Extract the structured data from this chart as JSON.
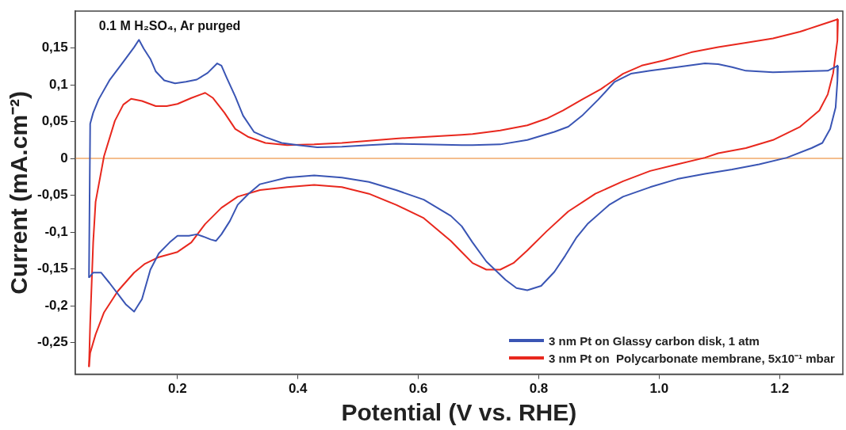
{
  "chart_data": {
    "type": "line",
    "xlabel": "Potential (V vs. RHE)",
    "ylabel": "Current (mA.cm⁻²)",
    "annotations": [
      "0.1 M H₂SO₄, Ar purged"
    ],
    "xlim": [
      0.03,
      1.305
    ],
    "xticks": [
      0.2,
      0.4,
      0.6,
      0.8,
      {
        "value": 1.0,
        "label": "1.0"
      },
      1.2
    ],
    "ylim": [
      -0.293,
      0.2
    ],
    "yticks": [
      {
        "value": -0.25,
        "label": "-0,25"
      },
      {
        "value": -0.2,
        "label": "-0,2"
      },
      {
        "value": -0.15,
        "label": "-0,15"
      },
      {
        "value": -0.1,
        "label": "-0,1"
      },
      {
        "value": -0.05,
        "label": "-0,05"
      },
      0,
      {
        "value": 0.05,
        "label": "0,05"
      },
      {
        "value": 0.1,
        "label": "0,1"
      },
      {
        "value": 0.15,
        "label": "0,15"
      }
    ],
    "grid": false,
    "legend": "bottom right",
    "marker": "none",
    "line_style": "solid",
    "ref_lines": [
      {
        "axis": "y",
        "value": 0,
        "color": "#f0a868"
      }
    ],
    "series": [
      {
        "name": "3 nm Pt on Glassy carbon disk, 1 atm",
        "color": "#3a55b4",
        "x": [
          0.053,
          0.055,
          0.06,
          0.069,
          0.087,
          0.11,
          0.128,
          0.136,
          0.144,
          0.155,
          0.164,
          0.178,
          0.196,
          0.214,
          0.232,
          0.25,
          0.266,
          0.273,
          0.282,
          0.296,
          0.309,
          0.327,
          0.346,
          0.373,
          0.4,
          0.432,
          0.473,
          0.518,
          0.563,
          0.609,
          0.672,
          0.69,
          0.736,
          0.781,
          0.826,
          0.849,
          0.872,
          0.899,
          0.926,
          0.953,
          0.985,
          1.03,
          1.076,
          1.098,
          1.121,
          1.144,
          1.189,
          1.234,
          1.28,
          1.297
        ],
        "values": [
          -0.162,
          0.047,
          0.062,
          0.08,
          0.106,
          0.131,
          0.151,
          0.161,
          0.149,
          0.135,
          0.118,
          0.106,
          0.102,
          0.104,
          0.107,
          0.116,
          0.129,
          0.126,
          0.109,
          0.084,
          0.058,
          0.036,
          0.029,
          0.021,
          0.018,
          0.015,
          0.016,
          0.018,
          0.02,
          0.019,
          0.018,
          0.018,
          0.019,
          0.025,
          0.036,
          0.043,
          0.058,
          0.08,
          0.104,
          0.115,
          0.119,
          0.124,
          0.129,
          0.128,
          0.124,
          0.119,
          0.117,
          0.118,
          0.119,
          0.126
        ]
      },
      {
        "color": "#3a55b4",
        "x": [
          1.297,
          1.296,
          1.293,
          1.284,
          1.271,
          1.253,
          1.212,
          1.166,
          1.121,
          1.076,
          1.03,
          0.985,
          0.94,
          0.917,
          0.881,
          0.863,
          0.844,
          0.826,
          0.804,
          0.781,
          0.763,
          0.745,
          0.713,
          0.69,
          0.672,
          0.654,
          0.609,
          0.563,
          0.518,
          0.473,
          0.427,
          0.382,
          0.337,
          0.318,
          0.3,
          0.287,
          0.273,
          0.264,
          0.255,
          0.246,
          0.232,
          0.219,
          0.2,
          0.187,
          0.169,
          0.155,
          0.141,
          0.128,
          0.114,
          0.101,
          0.087,
          0.073,
          0.06,
          0.053
        ],
        "values": [
          0.126,
          0.105,
          0.069,
          0.04,
          0.021,
          0.014,
          0.001,
          -0.008,
          -0.015,
          -0.021,
          -0.028,
          -0.039,
          -0.052,
          -0.063,
          -0.089,
          -0.107,
          -0.132,
          -0.154,
          -0.173,
          -0.179,
          -0.176,
          -0.165,
          -0.14,
          -0.114,
          -0.092,
          -0.078,
          -0.056,
          -0.043,
          -0.032,
          -0.026,
          -0.023,
          -0.026,
          -0.035,
          -0.048,
          -0.063,
          -0.085,
          -0.103,
          -0.112,
          -0.11,
          -0.107,
          -0.103,
          -0.105,
          -0.105,
          -0.114,
          -0.129,
          -0.151,
          -0.191,
          -0.208,
          -0.198,
          -0.184,
          -0.169,
          -0.155,
          -0.155,
          -0.162
        ]
      },
      {
        "name": "3 nm Pt on  Polycarbonate membrane, 5x10⁻¹ mbar",
        "color": "#e8281e",
        "x": [
          0.053,
          0.055,
          0.06,
          0.064,
          0.078,
          0.096,
          0.11,
          0.123,
          0.141,
          0.164,
          0.182,
          0.2,
          0.223,
          0.246,
          0.259,
          0.278,
          0.296,
          0.318,
          0.346,
          0.382,
          0.427,
          0.473,
          0.518,
          0.563,
          0.609,
          0.672,
          0.69,
          0.736,
          0.781,
          0.813,
          0.84,
          0.872,
          0.903,
          0.94,
          0.971,
          1.008,
          1.053,
          1.098,
          1.144,
          1.189,
          1.234,
          1.271,
          1.297
        ],
        "values": [
          -0.283,
          -0.224,
          -0.114,
          -0.059,
          0.003,
          0.051,
          0.073,
          0.081,
          0.078,
          0.071,
          0.071,
          0.074,
          0.082,
          0.089,
          0.082,
          0.062,
          0.04,
          0.029,
          0.021,
          0.018,
          0.019,
          0.021,
          0.024,
          0.027,
          0.029,
          0.032,
          0.033,
          0.038,
          0.045,
          0.054,
          0.065,
          0.08,
          0.094,
          0.115,
          0.126,
          0.133,
          0.144,
          0.151,
          0.157,
          0.163,
          0.172,
          0.182,
          0.189
        ]
      },
      {
        "color": "#e8281e",
        "x": [
          1.297,
          1.296,
          1.289,
          1.28,
          1.266,
          1.234,
          1.189,
          1.144,
          1.098,
          1.076,
          1.03,
          0.985,
          0.94,
          0.894,
          0.849,
          0.813,
          0.781,
          0.758,
          0.736,
          0.713,
          0.69,
          0.672,
          0.654,
          0.609,
          0.563,
          0.518,
          0.473,
          0.427,
          0.382,
          0.337,
          0.3,
          0.273,
          0.246,
          0.223,
          0.2,
          0.169,
          0.146,
          0.128,
          0.101,
          0.078,
          0.064,
          0.055,
          0.053
        ],
        "values": [
          0.189,
          0.16,
          0.116,
          0.087,
          0.065,
          0.043,
          0.025,
          0.014,
          0.007,
          0.001,
          -0.008,
          -0.017,
          -0.031,
          -0.048,
          -0.072,
          -0.099,
          -0.125,
          -0.142,
          -0.151,
          -0.151,
          -0.142,
          -0.127,
          -0.112,
          -0.081,
          -0.063,
          -0.048,
          -0.039,
          -0.036,
          -0.039,
          -0.043,
          -0.052,
          -0.067,
          -0.089,
          -0.114,
          -0.127,
          -0.134,
          -0.143,
          -0.155,
          -0.18,
          -0.209,
          -0.239,
          -0.264,
          -0.283
        ]
      }
    ]
  }
}
